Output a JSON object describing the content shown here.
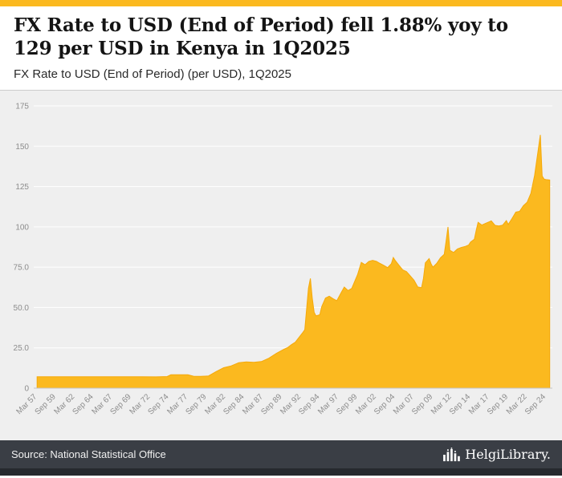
{
  "accent_color": "#FBB91F",
  "header": {
    "title": "FX Rate to USD (End of Period) fell 1.88% yoy to 129 per USD in Kenya in 1Q2025",
    "subtitle": "FX Rate to USD (End of Period) (per USD), 1Q2025"
  },
  "footer": {
    "source": "Source: National Statistical Office",
    "logo_text": "HelgiLibrary."
  },
  "chart_data": {
    "type": "area",
    "title": "FX Rate to USD (End of Period) (per USD), 1Q2025",
    "series_name": "FX Rate to USD (End of Period), Kenya, per USD",
    "xlabel": "",
    "ylabel": "",
    "fill_color": "#FBB91F",
    "line_color": "#F5A90A",
    "background": "#efefef",
    "gridline_color": "#ffffff",
    "axis_color": "#c4c4c4",
    "grid": true,
    "legend": "none",
    "ylim": [
      0,
      175
    ],
    "ytick_values": [
      0,
      25,
      50,
      75,
      100,
      125,
      150,
      175
    ],
    "ytick_labels": [
      "0",
      "25.0",
      "50.0",
      "75.0",
      "100",
      "125",
      "150",
      "175"
    ],
    "xlim": [
      1956.8,
      2025.6
    ],
    "xtick_values": [
      1957.25,
      1959.75,
      1962.25,
      1964.75,
      1967.25,
      1969.75,
      1972.25,
      1974.75,
      1977.25,
      1979.75,
      1982.25,
      1984.75,
      1987.25,
      1989.75,
      1992.25,
      1994.75,
      1997.25,
      1999.75,
      2002.25,
      2004.75,
      2007.25,
      2009.75,
      2012.25,
      2014.75,
      2017.25,
      2019.75,
      2022.25,
      2024.75
    ],
    "xtick_labels": [
      "Mar 57",
      "Sep 59",
      "Mar 62",
      "Sep 64",
      "Mar 67",
      "Sep 69",
      "Mar 72",
      "Sep 74",
      "Mar 77",
      "Sep 79",
      "Mar 82",
      "Sep 84",
      "Mar 87",
      "Sep 89",
      "Mar 92",
      "Sep 94",
      "Mar 97",
      "Sep 99",
      "Mar 02",
      "Sep 04",
      "Mar 07",
      "Sep 09",
      "Mar 12",
      "Sep 14",
      "Mar 17",
      "Sep 19",
      "Mar 22",
      "Sep 24"
    ],
    "points": [
      [
        1957.25,
        7.1
      ],
      [
        1960,
        7.1
      ],
      [
        1963,
        7.1
      ],
      [
        1966,
        7.1
      ],
      [
        1969,
        7.1
      ],
      [
        1971,
        7.1
      ],
      [
        1973,
        7.0
      ],
      [
        1974.5,
        7.2
      ],
      [
        1975,
        8.3
      ],
      [
        1976,
        8.35
      ],
      [
        1977.25,
        8.3
      ],
      [
        1978,
        7.4
      ],
      [
        1979,
        7.3
      ],
      [
        1980,
        7.6
      ],
      [
        1981,
        10.3
      ],
      [
        1982,
        12.7
      ],
      [
        1983,
        13.8
      ],
      [
        1984,
        15.8
      ],
      [
        1985,
        16.3
      ],
      [
        1986,
        16.0
      ],
      [
        1987,
        16.5
      ],
      [
        1988,
        18.6
      ],
      [
        1989,
        21.6
      ],
      [
        1990,
        24.1
      ],
      [
        1990.5,
        25.2
      ],
      [
        1991,
        27.0
      ],
      [
        1991.5,
        28.5
      ],
      [
        1992,
        31.5
      ],
      [
        1992.5,
        34.5
      ],
      [
        1992.75,
        36.2
      ],
      [
        1993.25,
        62.0
      ],
      [
        1993.5,
        68.0
      ],
      [
        1993.75,
        56.0
      ],
      [
        1994,
        47.0
      ],
      [
        1994.25,
        44.8
      ],
      [
        1994.75,
        45.5
      ],
      [
        1995,
        50.5
      ],
      [
        1995.5,
        55.9
      ],
      [
        1996,
        57.0
      ],
      [
        1996.5,
        55.5
      ],
      [
        1997,
        54.2
      ],
      [
        1997.5,
        58.5
      ],
      [
        1998,
        62.7
      ],
      [
        1998.5,
        60.5
      ],
      [
        1999,
        61.9
      ],
      [
        1999.5,
        67.5
      ],
      [
        1999.75,
        70.3
      ],
      [
        2000.25,
        78.0
      ],
      [
        2000.75,
        76.5
      ],
      [
        2001.25,
        78.6
      ],
      [
        2001.75,
        79.2
      ],
      [
        2002.25,
        78.6
      ],
      [
        2002.75,
        77.3
      ],
      [
        2003.25,
        76.1
      ],
      [
        2003.75,
        74.7
      ],
      [
        2004.25,
        77.2
      ],
      [
        2004.5,
        81.0
      ],
      [
        2004.75,
        79.2
      ],
      [
        2005.25,
        76.2
      ],
      [
        2005.75,
        73.4
      ],
      [
        2006.25,
        72.3
      ],
      [
        2006.75,
        69.6
      ],
      [
        2007.25,
        66.9
      ],
      [
        2007.75,
        62.7
      ],
      [
        2008.25,
        62.3
      ],
      [
        2008.5,
        68.0
      ],
      [
        2008.75,
        77.7
      ],
      [
        2009.25,
        80.3
      ],
      [
        2009.5,
        77.2
      ],
      [
        2009.75,
        75.0
      ],
      [
        2010.25,
        77.3
      ],
      [
        2010.75,
        80.8
      ],
      [
        2011.25,
        83.0
      ],
      [
        2011.5,
        91.0
      ],
      [
        2011.75,
        100.0
      ],
      [
        2012,
        85.5
      ],
      [
        2012.5,
        84.1
      ],
      [
        2013,
        86.3
      ],
      [
        2013.5,
        87.2
      ],
      [
        2014,
        87.8
      ],
      [
        2014.5,
        88.8
      ],
      [
        2014.75,
        90.6
      ],
      [
        2015.25,
        92.3
      ],
      [
        2015.5,
        98.0
      ],
      [
        2015.75,
        102.8
      ],
      [
        2016.25,
        101.1
      ],
      [
        2016.75,
        102.2
      ],
      [
        2017.25,
        103.2
      ],
      [
        2017.5,
        103.7
      ],
      [
        2018,
        100.9
      ],
      [
        2018.5,
        100.6
      ],
      [
        2019,
        101.0
      ],
      [
        2019.5,
        103.9
      ],
      [
        2019.75,
        101.5
      ],
      [
        2020.25,
        105.2
      ],
      [
        2020.75,
        109.2
      ],
      [
        2021.25,
        109.6
      ],
      [
        2021.75,
        113.1
      ],
      [
        2022.25,
        115.2
      ],
      [
        2022.75,
        120.7
      ],
      [
        2023.25,
        132.0
      ],
      [
        2023.5,
        140.5
      ],
      [
        2023.75,
        148.5
      ],
      [
        2024,
        157.0
      ],
      [
        2024.25,
        131.5
      ],
      [
        2024.5,
        129.6
      ],
      [
        2024.75,
        129.3
      ],
      [
        2025.25,
        129.0
      ]
    ],
    "latest_value": 129,
    "latest_period": "1Q2025",
    "yoy_change_pct": -1.88
  }
}
